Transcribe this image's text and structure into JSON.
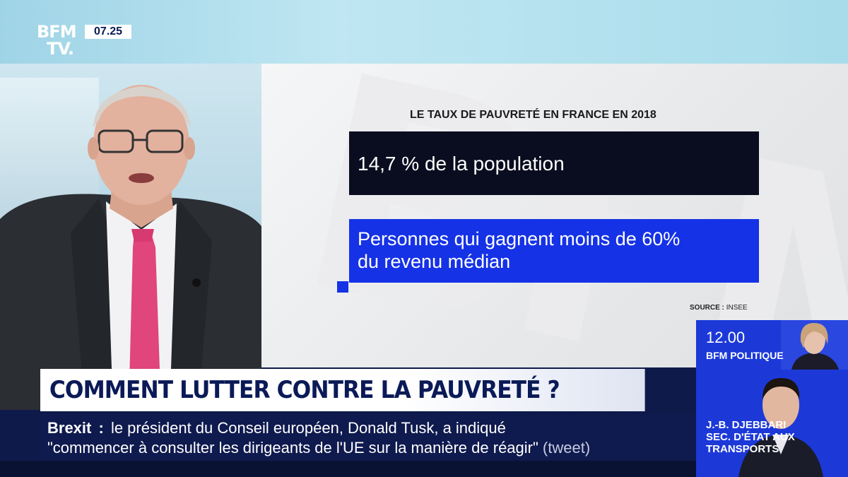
{
  "channel": {
    "logo": "BFM TV.",
    "logo_line1": "BFM",
    "logo_line2": "TV.",
    "clock": "07.25"
  },
  "chart": {
    "title": "LE TAUX DE PAUVRETÉ EN FRANCE EN 2018",
    "box1_text": "14,7 % de la population",
    "box2_line1": "Personnes qui gagnent moins de 60%",
    "box2_line2": "du revenu médian",
    "source_label": "SOURCE :",
    "source_value": "INSEE",
    "colors": {
      "dark": "#0a0d1f",
      "accent": "#1532e6"
    }
  },
  "headline": "COMMENT LUTTER CONTRE LA PAUVRETÉ ?",
  "ticker": {
    "label": "Brexit",
    "separator": ":",
    "line1": "le président du Conseil européen, Donald Tusk, a indiqué",
    "line2": "\"commencer à consulter les dirigeants de l'UE sur la manière de réagir\"",
    "suffix": "(tweet)"
  },
  "promo": {
    "time": "12.00",
    "show": "BFM POLITIQUE",
    "guest_line1": "J.-B. DJEBBARI",
    "guest_line2": "SEC. D'ÉTAT AUX",
    "guest_line3": "TRANSPORTS"
  },
  "watermark": "BFM"
}
